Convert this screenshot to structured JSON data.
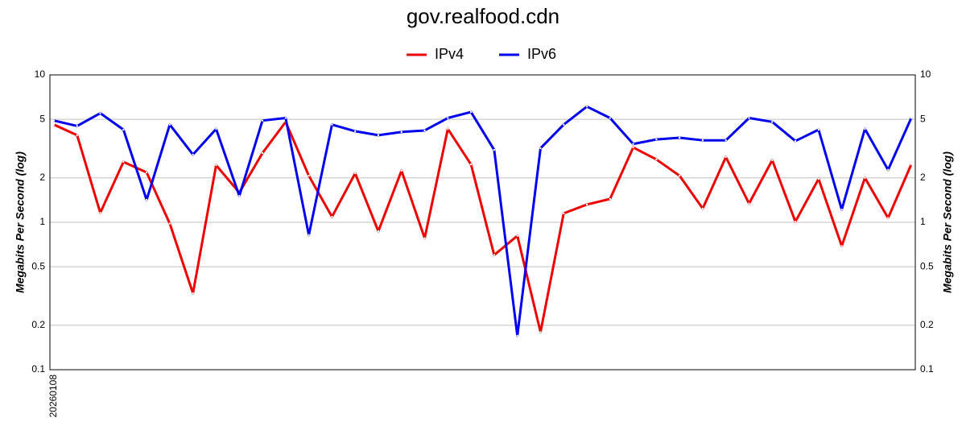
{
  "chart_data": {
    "type": "line",
    "title": "gov.realfood.cdn",
    "y_label": "Megabits Per Second (log)",
    "y2_label": "Megabits Per Second (log)",
    "categories": [
      "20260108",
      null,
      null,
      null,
      null,
      null,
      null,
      null,
      null,
      null,
      null,
      null,
      null,
      null,
      null,
      null,
      null,
      null,
      null,
      null,
      null,
      null,
      null,
      null,
      null,
      null,
      null,
      null,
      null,
      null,
      null,
      null,
      null,
      null,
      null,
      null,
      null,
      null
    ],
    "series": [
      {
        "name": "IPv4",
        "color": "#ee0000",
        "values": [
          4.6,
          3.9,
          1.16,
          2.57,
          2.18,
          0.98,
          0.33,
          2.44,
          1.59,
          2.95,
          4.8,
          2.07,
          1.09,
          2.15,
          0.87,
          2.24,
          0.78,
          4.3,
          2.47,
          0.6,
          0.81,
          0.18,
          1.15,
          1.32,
          1.44,
          3.22,
          2.67,
          2.07,
          1.24,
          2.77,
          1.34,
          2.64,
          1.01,
          1.97,
          0.69,
          2.0,
          1.07,
          2.47
        ]
      },
      {
        "name": "IPv6",
        "color": "#0000ee",
        "values": [
          4.9,
          4.5,
          5.5,
          4.25,
          1.42,
          4.6,
          2.88,
          4.3,
          1.51,
          4.9,
          5.1,
          0.82,
          4.6,
          4.15,
          3.9,
          4.1,
          4.2,
          5.1,
          5.6,
          3.1,
          0.17,
          3.18,
          4.6,
          6.1,
          5.1,
          3.4,
          3.65,
          3.75,
          3.6,
          3.6,
          5.1,
          4.8,
          3.56,
          4.25,
          1.22,
          4.3,
          2.27,
          5.1
        ]
      }
    ],
    "ylim": [
      0.1,
      10
    ],
    "yticks": [
      0.1,
      0.2,
      0.5,
      1,
      2,
      5,
      10
    ],
    "y2lim": [
      0.1,
      10
    ],
    "y2ticks": [
      0.1,
      0.2,
      0.5,
      1,
      2,
      5,
      10
    ],
    "log_scale": true,
    "grid": true,
    "legend": "top"
  }
}
